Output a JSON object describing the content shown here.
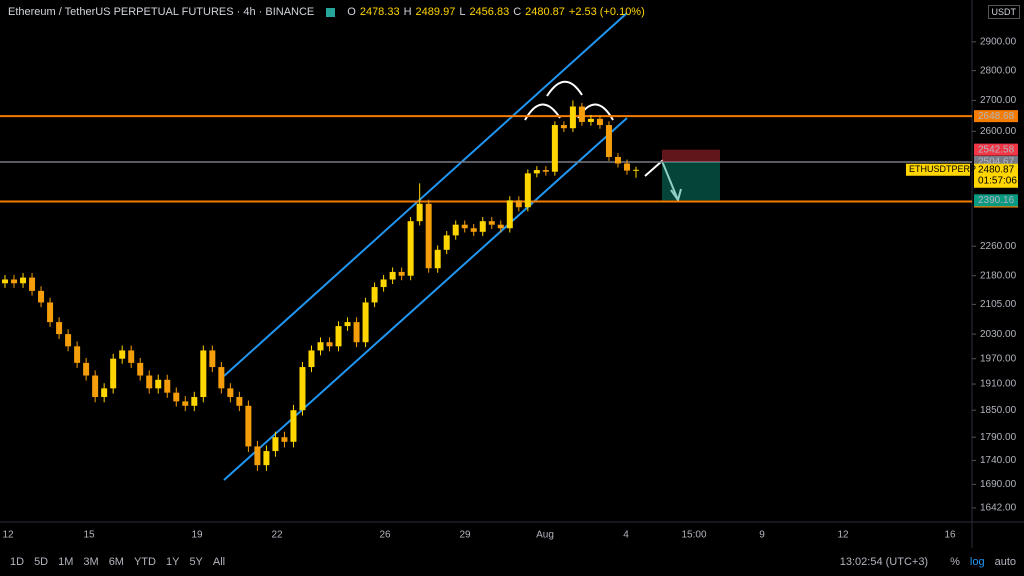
{
  "header": {
    "title": "Ethereum / TetherUS PERPETUAL FUTURES · 4h · BINANCE",
    "ohlc_letters": [
      "O",
      "H",
      "L",
      "C"
    ],
    "change": "+2.53 (+0.10%)"
  },
  "chart_data": {
    "type": "candlestick",
    "log_scale": true,
    "currency": "USDT",
    "up_color": "#ffd600",
    "down_color": "#f59e0b",
    "ylim": [
      1618,
      3052
    ],
    "yticks": [
      {
        "value": 2900,
        "label": "2900.00"
      },
      {
        "value": 2800,
        "label": "2800.00"
      },
      {
        "value": 2700,
        "label": "2700.00"
      },
      {
        "value": 2600,
        "label": "2600.00"
      },
      {
        "value": 2260,
        "label": "2260.00"
      },
      {
        "value": 2180,
        "label": "2180.00"
      },
      {
        "value": 2105,
        "label": "2105.00"
      },
      {
        "value": 2030,
        "label": "2030.00"
      },
      {
        "value": 1970,
        "label": "1970.00"
      },
      {
        "value": 1910,
        "label": "1910.00"
      },
      {
        "value": 1850,
        "label": "1850.00"
      },
      {
        "value": 1790,
        "label": "1790.00"
      },
      {
        "value": 1740,
        "label": "1740.00"
      },
      {
        "value": 1690,
        "label": "1690.00"
      },
      {
        "value": 1642,
        "label": "1642.00"
      }
    ],
    "x_labels": [
      "12",
      "15",
      "19",
      "22",
      "26",
      "29",
      "Aug",
      "4",
      "15:00",
      "9",
      "12",
      "16"
    ],
    "open": [
      2160,
      2170,
      2160,
      2175,
      2140,
      2110,
      2060,
      2030,
      2000,
      1960,
      1930,
      1880,
      1900,
      1970,
      1990,
      1960,
      1930,
      1900,
      1920,
      1890,
      1870,
      1860,
      1880,
      1990,
      1950,
      1900,
      1880,
      1860,
      1770,
      1730,
      1760,
      1790,
      1780,
      1850,
      1950,
      1990,
      2010,
      2000,
      2050,
      2060,
      2010,
      2110,
      2150,
      2170,
      2190,
      2180,
      2330,
      2380,
      2200,
      2250,
      2290,
      2320,
      2310,
      2300,
      2330,
      2320,
      2310,
      2390,
      2370,
      2470,
      2480,
      2475,
      2620,
      2610,
      2680,
      2630,
      2640,
      2620,
      2520,
      2500,
      2478.33
    ],
    "high": [
      2182,
      2182,
      2187,
      2187,
      2152,
      2122,
      2072,
      2042,
      2012,
      1972,
      1942,
      1912,
      1982,
      2002,
      2002,
      1972,
      1942,
      1932,
      1932,
      1902,
      1882,
      1892,
      2002,
      2002,
      1962,
      1912,
      1892,
      1872,
      1782,
      1772,
      1802,
      1802,
      1862,
      1962,
      2002,
      2022,
      2022,
      2062,
      2072,
      2072,
      2122,
      2162,
      2182,
      2202,
      2202,
      2342,
      2440,
      2392,
      2262,
      2302,
      2332,
      2332,
      2322,
      2342,
      2342,
      2332,
      2402,
      2402,
      2482,
      2492,
      2492,
      2632,
      2632,
      2700,
      2692,
      2652,
      2652,
      2632,
      2532,
      2512,
      2489.97
    ],
    "low": [
      2148,
      2148,
      2148,
      2128,
      2098,
      2048,
      2018,
      1988,
      1948,
      1918,
      1868,
      1868,
      1888,
      1958,
      1948,
      1918,
      1888,
      1888,
      1878,
      1858,
      1848,
      1848,
      1868,
      1938,
      1888,
      1868,
      1848,
      1758,
      1718,
      1718,
      1748,
      1768,
      1768,
      1838,
      1938,
      1978,
      1988,
      1988,
      2038,
      1998,
      1998,
      2098,
      2138,
      2158,
      2168,
      2168,
      2318,
      2188,
      2188,
      2238,
      2278,
      2298,
      2288,
      2288,
      2308,
      2298,
      2298,
      2358,
      2358,
      2458,
      2463,
      2463,
      2598,
      2598,
      2618,
      2618,
      2608,
      2508,
      2488,
      2466,
      2456.83
    ],
    "close": [
      2170,
      2160,
      2175,
      2140,
      2110,
      2060,
      2030,
      2000,
      1960,
      1930,
      1880,
      1900,
      1970,
      1990,
      1960,
      1930,
      1900,
      1920,
      1890,
      1870,
      1860,
      1880,
      1990,
      1950,
      1900,
      1880,
      1860,
      1770,
      1730,
      1760,
      1790,
      1780,
      1850,
      1950,
      1990,
      2010,
      2000,
      2050,
      2060,
      2010,
      2110,
      2150,
      2170,
      2190,
      2180,
      2330,
      2380,
      2200,
      2250,
      2290,
      2320,
      2310,
      2300,
      2330,
      2320,
      2310,
      2390,
      2370,
      2470,
      2480,
      2475,
      2620,
      2610,
      2680,
      2630,
      2640,
      2620,
      2520,
      2500,
      2478.33,
      2480.87
    ],
    "hlines": [
      {
        "value": 2648.68,
        "color": "#f57c00"
      },
      {
        "value": 2386.56,
        "color": "#f57c00"
      }
    ],
    "position": {
      "stop": 2542.58,
      "entry": 2504.67,
      "target": 2390.16,
      "stop_color": "#f23645",
      "entry_color": "#787b86",
      "target_color": "#089981"
    },
    "symbol_label": "ETHUSDTPERP",
    "countdown": "01:57:06"
  },
  "toolbar": {
    "ranges": [
      "1D",
      "5D",
      "1M",
      "3M",
      "6M",
      "YTD",
      "1Y",
      "5Y",
      "All"
    ],
    "clock": "13:02:54 (UTC+3)",
    "percent": "%",
    "log": "log",
    "auto": "auto"
  }
}
